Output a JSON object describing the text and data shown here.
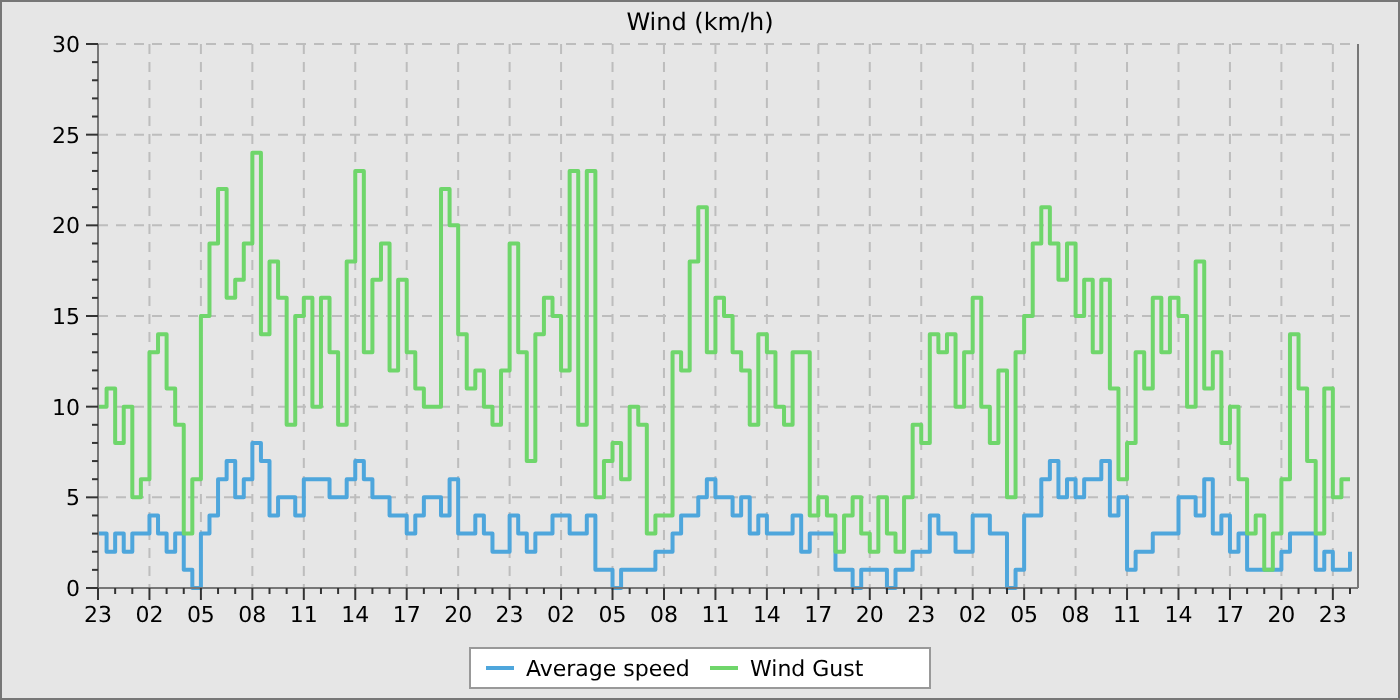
{
  "chart_data": {
    "type": "step",
    "title": "Wind (km/h)",
    "legend": "bottom",
    "grid": true,
    "line_style": "solid",
    "ylim": [
      0,
      30
    ],
    "categories": [
      "23",
      null,
      null,
      null,
      null,
      null,
      "02",
      null,
      null,
      null,
      null,
      null,
      "05",
      null,
      null,
      null,
      null,
      null,
      "08",
      null,
      null,
      null,
      null,
      null,
      "11",
      null,
      null,
      null,
      null,
      null,
      "14",
      null,
      null,
      null,
      null,
      null,
      "17",
      null,
      null,
      null,
      null,
      null,
      "20",
      null,
      null,
      null,
      null,
      null,
      "23",
      null,
      null,
      null,
      null,
      null,
      "02",
      null,
      null,
      null,
      null,
      null,
      "05",
      null,
      null,
      null,
      null,
      null,
      "08",
      null,
      null,
      null,
      null,
      null,
      "11",
      null,
      null,
      null,
      null,
      null,
      "14",
      null,
      null,
      null,
      null,
      null,
      "17",
      null,
      null,
      null,
      null,
      null,
      "20",
      null,
      null,
      null,
      null,
      null,
      "23",
      null,
      null,
      null,
      null,
      null,
      "02",
      null,
      null,
      null,
      null,
      null,
      "05",
      null,
      null,
      null,
      null,
      null,
      "08",
      null,
      null,
      null,
      null,
      null,
      "11",
      null,
      null,
      null,
      null,
      null,
      "14",
      null,
      null,
      null,
      null,
      null,
      "17",
      null,
      null,
      null,
      null,
      null,
      "20",
      null,
      null,
      null,
      null,
      null,
      "23",
      null,
      null
    ],
    "yticks": [
      0,
      {
        "value": 1,
        "label": null
      },
      {
        "value": 2,
        "label": null
      },
      {
        "value": 3,
        "label": null
      },
      {
        "value": 4,
        "label": null
      },
      5,
      {
        "value": 6,
        "label": null
      },
      {
        "value": 7,
        "label": null
      },
      {
        "value": 8,
        "label": null
      },
      {
        "value": 9,
        "label": null
      },
      10,
      {
        "value": 11,
        "label": null
      },
      {
        "value": 12,
        "label": null
      },
      {
        "value": 13,
        "label": null
      },
      {
        "value": 14,
        "label": null
      },
      15,
      {
        "value": 16,
        "label": null
      },
      {
        "value": 17,
        "label": null
      },
      {
        "value": 18,
        "label": null
      },
      {
        "value": 19,
        "label": null
      },
      20,
      {
        "value": 21,
        "label": null
      },
      {
        "value": 22,
        "label": null
      },
      {
        "value": 23,
        "label": null
      },
      {
        "value": 24,
        "label": null
      },
      25,
      {
        "value": 26,
        "label": null
      },
      {
        "value": 27,
        "label": null
      },
      {
        "value": 28,
        "label": null
      },
      {
        "value": 29,
        "label": null
      },
      30
    ],
    "series": [
      {
        "name": "Average speed",
        "color": "#4ea6dc",
        "values": [
          3,
          2,
          3,
          2,
          3,
          3,
          4,
          3,
          2,
          3,
          1,
          0,
          3,
          4,
          6,
          7,
          5,
          6,
          8,
          7,
          4,
          5,
          5,
          4,
          6,
          6,
          6,
          5,
          5,
          6,
          7,
          6,
          5,
          5,
          4,
          4,
          3,
          4,
          5,
          5,
          4,
          6,
          3,
          3,
          4,
          3,
          2,
          2,
          4,
          3,
          2,
          3,
          3,
          4,
          4,
          3,
          3,
          4,
          1,
          1,
          0,
          1,
          1,
          1,
          1,
          2,
          2,
          3,
          4,
          4,
          5,
          6,
          5,
          5,
          4,
          5,
          3,
          4,
          3,
          3,
          3,
          4,
          2,
          3,
          3,
          3,
          1,
          1,
          0,
          1,
          1,
          1,
          0,
          1,
          1,
          2,
          2,
          4,
          3,
          3,
          2,
          2,
          4,
          4,
          3,
          3,
          0,
          1,
          4,
          4,
          6,
          7,
          5,
          6,
          5,
          6,
          6,
          7,
          4,
          5,
          1,
          2,
          2,
          3,
          3,
          3,
          5,
          5,
          4,
          6,
          3,
          4,
          2,
          3,
          1,
          1,
          1,
          1,
          2,
          3,
          3,
          3,
          1,
          2,
          1,
          1,
          2
        ]
      },
      {
        "name": "Wind Gust",
        "color": "#6fd66b",
        "values": [
          10,
          11,
          8,
          10,
          5,
          6,
          13,
          14,
          11,
          9,
          3,
          6,
          15,
          19,
          22,
          16,
          17,
          19,
          24,
          14,
          18,
          16,
          9,
          15,
          16,
          10,
          16,
          13,
          9,
          18,
          23,
          13,
          17,
          19,
          12,
          17,
          13,
          11,
          10,
          10,
          22,
          20,
          14,
          11,
          12,
          10,
          9,
          12,
          19,
          13,
          7,
          14,
          16,
          15,
          12,
          23,
          9,
          23,
          5,
          7,
          8,
          6,
          10,
          9,
          3,
          4,
          4,
          13,
          12,
          18,
          21,
          13,
          16,
          15,
          13,
          12,
          9,
          14,
          13,
          10,
          9,
          13,
          13,
          4,
          5,
          4,
          2,
          4,
          5,
          3,
          2,
          5,
          3,
          2,
          5,
          9,
          8,
          14,
          13,
          14,
          10,
          13,
          16,
          10,
          8,
          12,
          5,
          13,
          15,
          19,
          21,
          19,
          17,
          19,
          15,
          17,
          13,
          17,
          11,
          6,
          8,
          13,
          11,
          16,
          13,
          16,
          15,
          10,
          18,
          11,
          13,
          8,
          10,
          6,
          3,
          4,
          1,
          3,
          6,
          14,
          11,
          7,
          3,
          11,
          5,
          6,
          6
        ]
      }
    ]
  }
}
